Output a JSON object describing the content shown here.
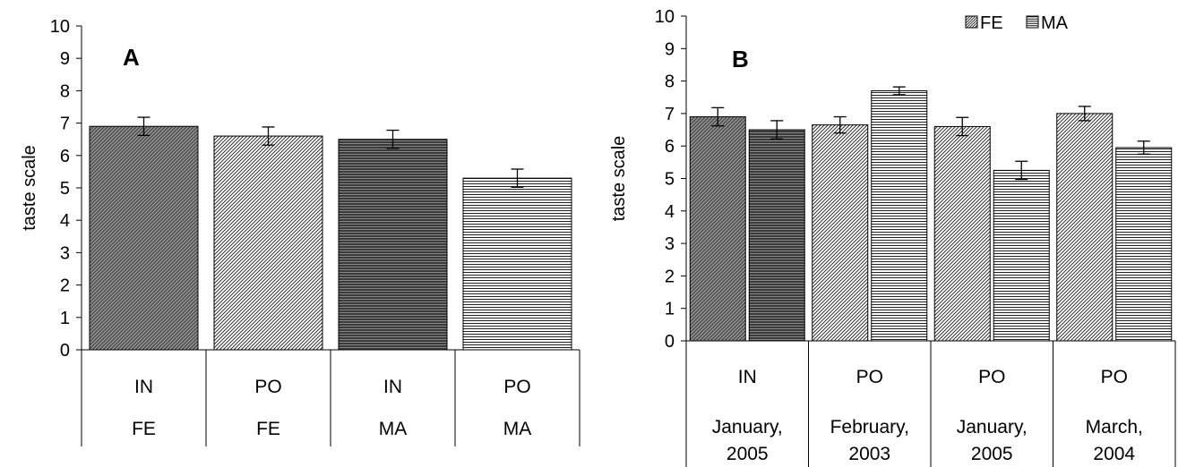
{
  "chart_data": [
    {
      "type": "bar",
      "panel_label": "A",
      "ylabel": "taste scale",
      "ylim": [
        0,
        10
      ],
      "yticks": [
        0,
        1,
        2,
        3,
        4,
        5,
        6,
        7,
        8,
        9,
        10
      ],
      "categories": [
        {
          "row1": "IN",
          "row2": "FE"
        },
        {
          "row1": "PO",
          "row2": "FE"
        },
        {
          "row1": "IN",
          "row2": "MA"
        },
        {
          "row1": "PO",
          "row2": "MA"
        }
      ],
      "bars": [
        {
          "value": 6.9,
          "error": 0.28,
          "pattern": "pat-dark-diag"
        },
        {
          "value": 6.6,
          "error": 0.28,
          "pattern": "pat-light-diag"
        },
        {
          "value": 6.5,
          "error": 0.28,
          "pattern": "pat-dark-horiz"
        },
        {
          "value": 5.3,
          "error": 0.28,
          "pattern": "pat-light-horiz"
        }
      ]
    },
    {
      "type": "bar",
      "panel_label": "B",
      "ylabel": "taste scale",
      "ylim": [
        0,
        10
      ],
      "yticks": [
        0,
        1,
        2,
        3,
        4,
        5,
        6,
        7,
        8,
        9,
        10
      ],
      "legend": [
        {
          "label": "FE",
          "pattern": "pat-leg-diag"
        },
        {
          "label": "MA",
          "pattern": "pat-leg-horiz"
        }
      ],
      "categories": [
        {
          "row1": "IN",
          "row2": "January,",
          "row3": "2005"
        },
        {
          "row1": "PO",
          "row2": "February,",
          "row3": "2003"
        },
        {
          "row1": "PO",
          "row2": "January,",
          "row3": "2005"
        },
        {
          "row1": "PO",
          "row2": "March,",
          "row3": "2004"
        }
      ],
      "series": [
        {
          "name": "FE",
          "values": [
            6.9,
            6.65,
            6.6,
            7.0
          ],
          "errors": [
            0.28,
            0.25,
            0.28,
            0.22
          ],
          "patterns": [
            "pat-dark-diag",
            "pat-light-diag",
            "pat-light-diag",
            "pat-light-diag"
          ]
        },
        {
          "name": "MA",
          "values": [
            6.5,
            7.7,
            5.25,
            5.95
          ],
          "errors": [
            0.28,
            0.12,
            0.28,
            0.2
          ],
          "patterns": [
            "pat-dark-horiz",
            "pat-light-horiz",
            "pat-light-horiz",
            "pat-light-horiz"
          ]
        }
      ]
    }
  ]
}
